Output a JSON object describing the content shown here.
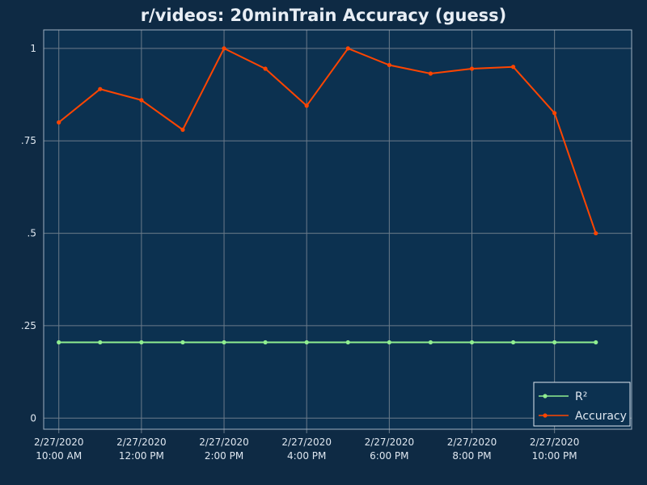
{
  "chart_data": {
    "type": "line",
    "title": "r/videos: 20minTrain Accuracy (guess)",
    "xlabel": "",
    "ylabel": "",
    "ylim": [
      -0.03,
      1.05
    ],
    "yticks": [
      {
        "value": 0,
        "label": "0"
      },
      {
        "value": 0.25,
        "label": ".25"
      },
      {
        "value": 0.5,
        "label": ".5"
      },
      {
        "value": 0.75,
        "label": ".75"
      },
      {
        "value": 1,
        "label": "1"
      }
    ],
    "xrange": [
      "2020-02-27 09:38",
      "2020-02-27 23:52"
    ],
    "xticks": [
      {
        "time": "2020-02-27 10:00",
        "date": "2/27/2020",
        "label": "10:00 AM"
      },
      {
        "time": "2020-02-27 12:00",
        "date": "2/27/2020",
        "label": "12:00 PM"
      },
      {
        "time": "2020-02-27 14:00",
        "date": "2/27/2020",
        "label": "2:00 PM"
      },
      {
        "time": "2020-02-27 16:00",
        "date": "2/27/2020",
        "label": "4:00 PM"
      },
      {
        "time": "2020-02-27 18:00",
        "date": "2/27/2020",
        "label": "6:00 PM"
      },
      {
        "time": "2020-02-27 20:00",
        "date": "2/27/2020",
        "label": "8:00 PM"
      },
      {
        "time": "2020-02-27 22:00",
        "date": "2/27/2020",
        "label": "10:00 PM"
      }
    ],
    "x": [
      "2020-02-27 10:00",
      "2020-02-27 11:00",
      "2020-02-27 12:00",
      "2020-02-27 13:00",
      "2020-02-27 14:00",
      "2020-02-27 15:00",
      "2020-02-27 16:00",
      "2020-02-27 17:00",
      "2020-02-27 18:00",
      "2020-02-27 19:00",
      "2020-02-27 20:00",
      "2020-02-27 21:00",
      "2020-02-27 22:00",
      "2020-02-27 23:00"
    ],
    "series": [
      {
        "name": "R²",
        "color": "#90ee90",
        "values": [
          0.205,
          0.205,
          0.205,
          0.205,
          0.205,
          0.205,
          0.205,
          0.205,
          0.205,
          0.205,
          0.205,
          0.205,
          0.205,
          0.205
        ]
      },
      {
        "name": "Accuracy",
        "color": "#ff4500",
        "values": [
          0.8,
          0.89,
          0.86,
          0.78,
          1.0,
          0.945,
          0.845,
          1.0,
          0.955,
          0.932,
          0.945,
          0.95,
          0.825,
          0.5
        ]
      }
    ],
    "grid": true,
    "legend_position": "bottom-right"
  },
  "colors": {
    "page_background": "#0e2a44",
    "plot_background": "#0c3150",
    "grid": "#6b7b8a",
    "text": "#dfe7f0"
  }
}
